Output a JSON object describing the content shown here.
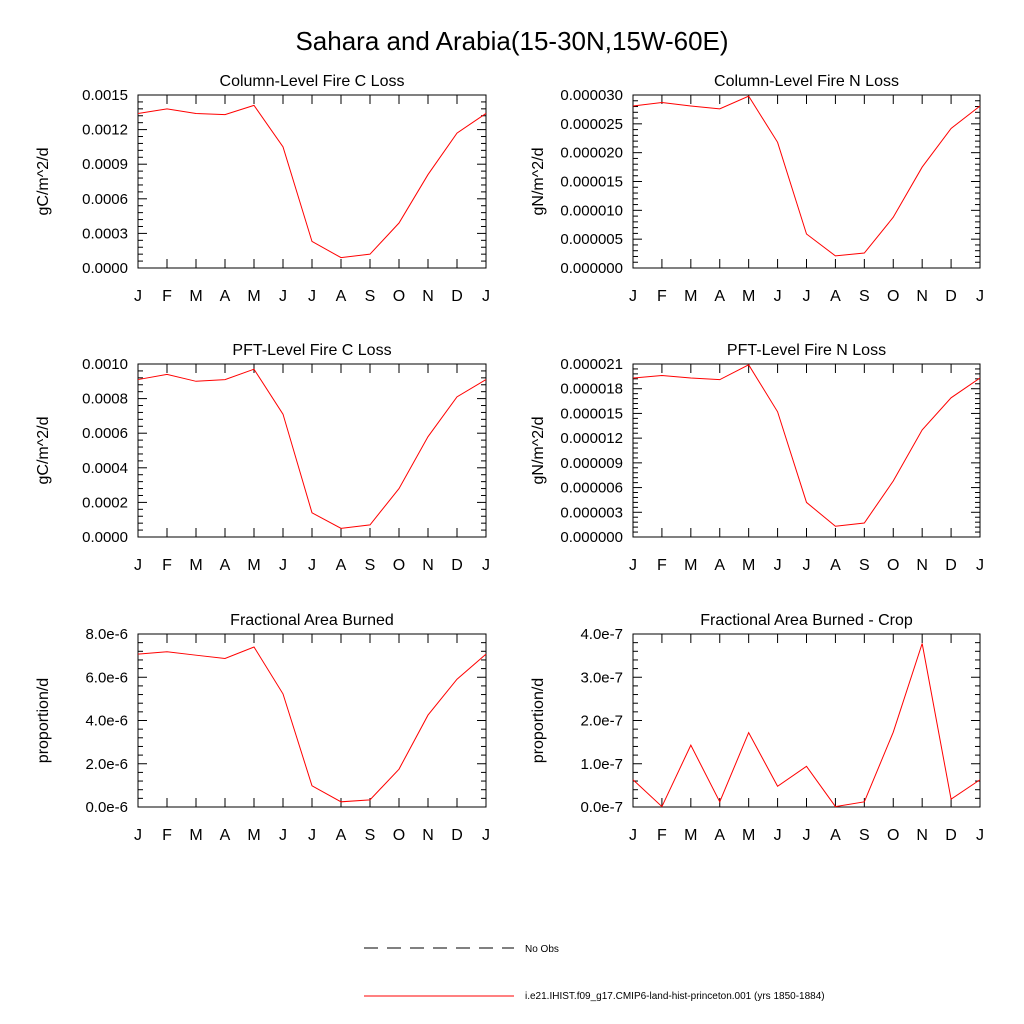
{
  "page": {
    "title": "Sahara and Arabia(15-30N,15W-60E)"
  },
  "legend": {
    "entries": [
      {
        "label": "No Obs",
        "style": "dashed",
        "color": "#000000"
      },
      {
        "label": "i.e21.IHIST.f09_g17.CMIP6-land-hist-princeton.001 (yrs 1850-1884)",
        "style": "solid",
        "color": "#ff0000"
      }
    ]
  },
  "chart_data": [
    {
      "type": "line",
      "title": "Column-Level Fire C Loss",
      "xlabel": "",
      "ylabel": "gC/m^2/d",
      "categories": [
        "J",
        "F",
        "M",
        "A",
        "M",
        "J",
        "J",
        "A",
        "S",
        "O",
        "N",
        "D",
        "J"
      ],
      "ylim": [
        0,
        0.0015
      ],
      "yticks": [
        "0.0000",
        "0.0003",
        "0.0006",
        "0.0009",
        "0.0012",
        "0.0015"
      ],
      "series": [
        {
          "color": "#ff0000",
          "values": [
            0.00134,
            0.00138,
            0.00134,
            0.00133,
            0.00141,
            0.00105,
            0.00023,
            9e-05,
            0.00012,
            0.00039,
            0.00081,
            0.00117,
            0.00134
          ]
        }
      ]
    },
    {
      "type": "line",
      "title": "Column-Level Fire N Loss",
      "xlabel": "",
      "ylabel": "gN/m^2/d",
      "categories": [
        "J",
        "F",
        "M",
        "A",
        "M",
        "J",
        "J",
        "A",
        "S",
        "O",
        "N",
        "D",
        "J"
      ],
      "ylim": [
        0,
        3e-05
      ],
      "yticks": [
        "0.000000",
        "0.000005",
        "0.000010",
        "0.000015",
        "0.000020",
        "0.000025",
        "0.000030"
      ],
      "series": [
        {
          "color": "#ff0000",
          "values": [
            2.81e-05,
            2.87e-05,
            2.81e-05,
            2.76e-05,
            2.98e-05,
            2.18e-05,
            5.9e-06,
            2.1e-06,
            2.6e-06,
            8.8e-06,
            1.75e-05,
            2.42e-05,
            2.81e-05
          ]
        }
      ]
    },
    {
      "type": "line",
      "title": "PFT-Level Fire C Loss",
      "xlabel": "",
      "ylabel": "gC/m^2/d",
      "categories": [
        "J",
        "F",
        "M",
        "A",
        "M",
        "J",
        "J",
        "A",
        "S",
        "O",
        "N",
        "D",
        "J"
      ],
      "ylim": [
        0,
        0.001
      ],
      "yticks": [
        "0.0000",
        "0.0002",
        "0.0004",
        "0.0006",
        "0.0008",
        "0.0010"
      ],
      "series": [
        {
          "color": "#ff0000",
          "values": [
            0.00091,
            0.00094,
            0.0009,
            0.00091,
            0.00097,
            0.00071,
            0.00014,
            5e-05,
            7e-05,
            0.00028,
            0.00058,
            0.00081,
            0.00091
          ]
        }
      ]
    },
    {
      "type": "line",
      "title": "PFT-Level Fire N Loss",
      "xlabel": "",
      "ylabel": "gN/m^2/d",
      "categories": [
        "J",
        "F",
        "M",
        "A",
        "M",
        "J",
        "J",
        "A",
        "S",
        "O",
        "N",
        "D",
        "J"
      ],
      "ylim": [
        0,
        2.1e-05
      ],
      "yticks": [
        "0.000000",
        "0.000003",
        "0.000006",
        "0.000009",
        "0.000012",
        "0.000015",
        "0.000018",
        "0.000021"
      ],
      "series": [
        {
          "color": "#ff0000",
          "values": [
            1.93e-05,
            1.96e-05,
            1.93e-05,
            1.91e-05,
            2.09e-05,
            1.52e-05,
            4.2e-06,
            1.3e-06,
            1.7e-06,
            6.8e-06,
            1.3e-05,
            1.69e-05,
            1.93e-05
          ]
        }
      ]
    },
    {
      "type": "line",
      "title": "Fractional Area Burned",
      "xlabel": "",
      "ylabel": "proportion/d",
      "categories": [
        "J",
        "F",
        "M",
        "A",
        "M",
        "J",
        "J",
        "A",
        "S",
        "O",
        "N",
        "D",
        "J"
      ],
      "ylim": [
        0,
        8e-06
      ],
      "yticks": [
        "0.0e-6",
        "2.0e-6",
        "4.0e-6",
        "6.0e-6",
        "8.0e-6"
      ],
      "series": [
        {
          "color": "#ff0000",
          "values": [
            7.07e-06,
            7.18e-06,
            7.02e-06,
            6.87e-06,
            7.4e-06,
            5.23e-06,
            9.8e-07,
            2.4e-07,
            3.3e-07,
            1.75e-06,
            4.25e-06,
            5.91e-06,
            7.07e-06
          ]
        }
      ]
    },
    {
      "type": "line",
      "title": "Fractional Area Burned - Crop",
      "xlabel": "",
      "ylabel": "proportion/d",
      "categories": [
        "J",
        "F",
        "M",
        "A",
        "M",
        "J",
        "J",
        "A",
        "S",
        "O",
        "N",
        "D",
        "J"
      ],
      "ylim": [
        0,
        4e-07
      ],
      "yticks": [
        "0.0e-7",
        "1.0e-7",
        "2.0e-7",
        "3.0e-7",
        "4.0e-7"
      ],
      "series": [
        {
          "color": "#ff0000",
          "values": [
            6.3e-08,
            1e-09,
            1.43e-07,
            1.2e-08,
            1.72e-07,
            4.8e-08,
            9.4e-08,
            1e-09,
            1.2e-08,
            1.73e-07,
            3.78e-07,
            1.8e-08,
            6.3e-08
          ]
        }
      ]
    }
  ]
}
